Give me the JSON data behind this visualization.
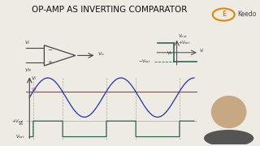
{
  "title": "OP-AMP AS INVERTING COMPARATOR",
  "title_fontsize": 7.5,
  "bg_color": "#eeebe5",
  "sine_color": "#2233aa",
  "ref_color": "#bb3333",
  "square_color": "#336655",
  "dashed_color": "#aaaaaa",
  "transfer_color": "#336655",
  "face_color": "#eeebe5",
  "line_color": "#444444",
  "text_color": "#333333"
}
